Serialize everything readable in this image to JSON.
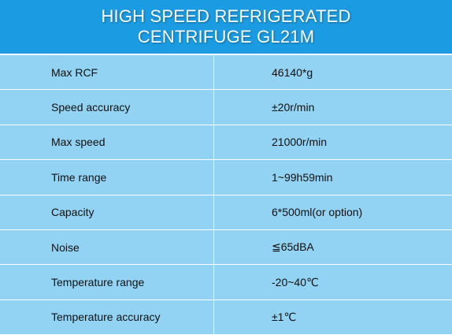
{
  "header": {
    "title": [
      "HIGH SPEED REFRIGERATED",
      "CENTRIFUGE GL21M"
    ]
  },
  "table": {
    "rows": [
      [
        "Max RCF",
        "46140*g"
      ],
      [
        "Speed accuracy",
        "±20r/min"
      ],
      [
        "Max speed",
        "21000r/min"
      ],
      [
        "Time range",
        "1~99h59min"
      ],
      [
        "Capacity",
        "6*500ml(or option)"
      ],
      [
        "Noise",
        "≦65dBA"
      ],
      [
        "Temperature range",
        "-20~40℃"
      ],
      [
        "Temperature accuracy",
        "±1℃"
      ]
    ]
  }
}
